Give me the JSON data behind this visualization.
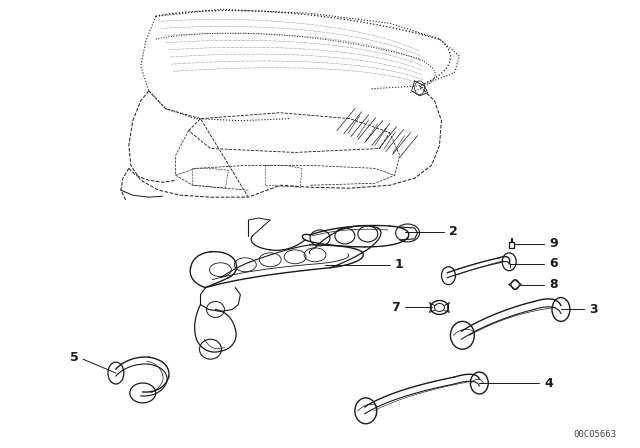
{
  "bg_color": "#ffffff",
  "line_color": "#1a1a1a",
  "fig_width": 6.4,
  "fig_height": 4.48,
  "dpi": 100,
  "watermark": "00C05663",
  "watermark_fs": 6.5
}
